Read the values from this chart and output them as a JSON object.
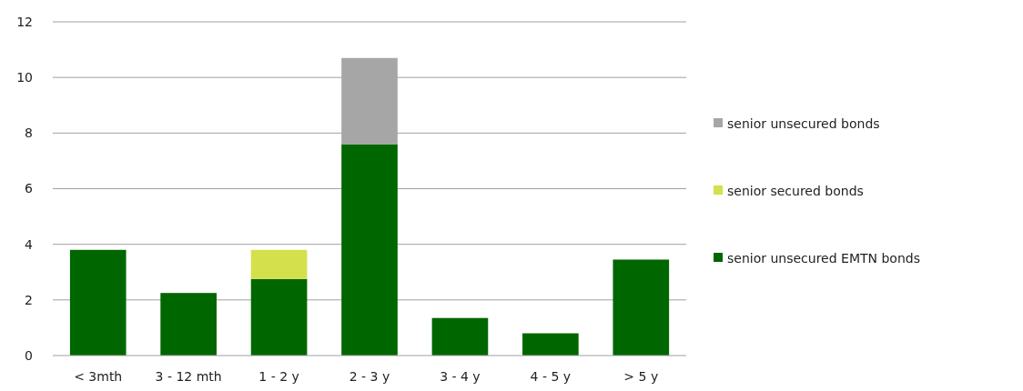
{
  "chart_data": {
    "type": "bar",
    "stacked": true,
    "categories": [
      "< 3mth",
      "3 - 12 mth",
      "1 - 2 y",
      "2 - 3 y",
      "3 - 4 y",
      "4 - 5 y",
      "> 5 y"
    ],
    "series": [
      {
        "name": "senior unsecured EMTN bonds",
        "color": "#006600",
        "values": [
          3.8,
          2.25,
          2.75,
          7.6,
          1.35,
          0.8,
          3.45
        ]
      },
      {
        "name": "senior secured bonds",
        "color": "#d4e04c",
        "values": [
          0,
          0,
          1.05,
          0,
          0,
          0,
          0
        ]
      },
      {
        "name": "senior unsecured bonds",
        "color": "#a6a6a6",
        "values": [
          0,
          0,
          0,
          3.1,
          0,
          0,
          0
        ]
      }
    ],
    "ylim": [
      0,
      12
    ],
    "yticks": [
      0,
      2,
      4,
      6,
      8,
      10,
      12
    ],
    "grid": "y",
    "legend": "right"
  }
}
